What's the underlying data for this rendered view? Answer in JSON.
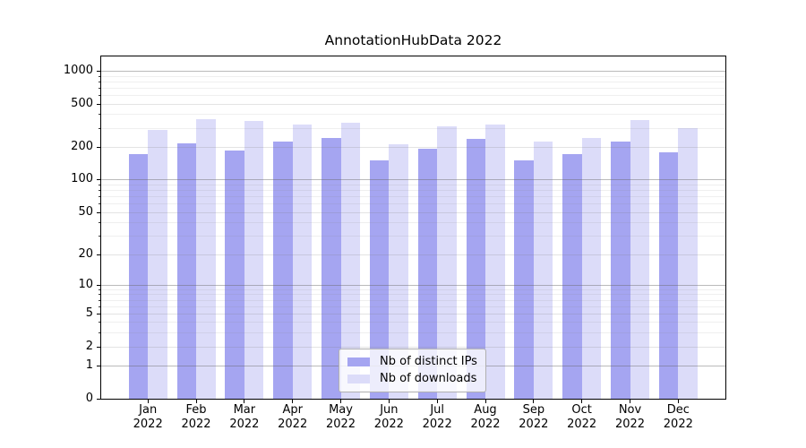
{
  "colors": {
    "bar_distinct_ips": "#a5a5f1",
    "bar_downloads": "#dcdcf9",
    "grid": "#b0b0b0",
    "axis": "#000000",
    "legend_border": "#b0b0b0"
  },
  "chart_data": {
    "type": "bar",
    "title": "AnnotationHubData 2022",
    "categories": [
      "Jan",
      "Feb",
      "Mar",
      "Apr",
      "May",
      "Jun",
      "Jul",
      "Aug",
      "Sep",
      "Oct",
      "Nov",
      "Dec"
    ],
    "x_year": "2022",
    "series": [
      {
        "name": "Nb of distinct IPs",
        "values": [
          173,
          217,
          186,
          225,
          240,
          151,
          192,
          236,
          150,
          171,
          223,
          178
        ]
      },
      {
        "name": "Nb of downloads",
        "values": [
          288,
          363,
          344,
          323,
          335,
          213,
          311,
          319,
          223,
          240,
          351,
          299
        ]
      }
    ],
    "yscale": "log1p",
    "ylim": [
      0,
      1350
    ],
    "y_ticks": [
      0,
      1,
      2,
      5,
      10,
      20,
      50,
      100,
      200,
      500,
      1000
    ],
    "y_minor_ticks": [
      3,
      4,
      6,
      7,
      8,
      9,
      30,
      40,
      60,
      70,
      80,
      90,
      300,
      400,
      600,
      700,
      800,
      900
    ],
    "grid": true,
    "legend_position": "lower center"
  }
}
